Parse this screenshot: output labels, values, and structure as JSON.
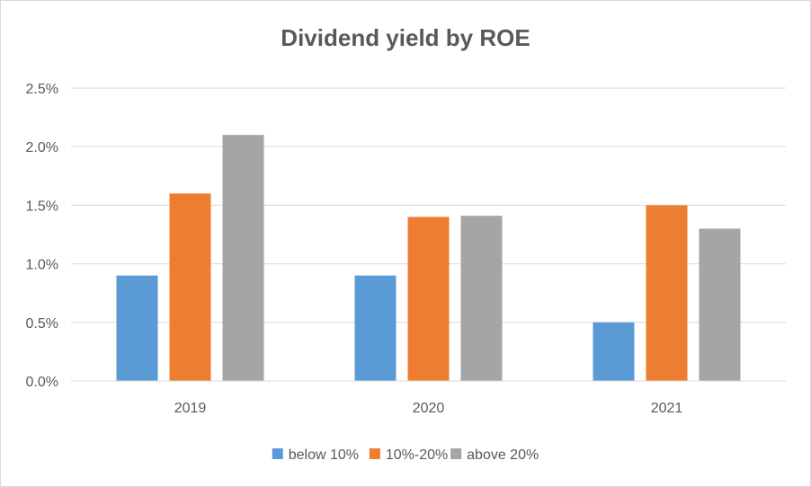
{
  "chart_data": {
    "type": "bar",
    "title": "Dividend yield by ROE",
    "categories": [
      "2019",
      "2020",
      "2021"
    ],
    "series": [
      {
        "name": "below 10%",
        "values": [
          0.9,
          0.9,
          0.5
        ],
        "color": "#5b9bd5"
      },
      {
        "name": "10%-20%",
        "values": [
          1.6,
          1.4,
          1.5
        ],
        "color": "#ed7d31"
      },
      {
        "name": "above 20%",
        "values": [
          2.1,
          1.41,
          1.3
        ],
        "color": "#a5a5a5"
      }
    ],
    "yticks": [
      "0.0%",
      "0.5%",
      "1.0%",
      "1.5%",
      "2.0%",
      "2.5%"
    ],
    "ylim": [
      0,
      2.5
    ],
    "grid": true,
    "legend_position": "bottom",
    "gridline_color": "#d9d9d9"
  }
}
